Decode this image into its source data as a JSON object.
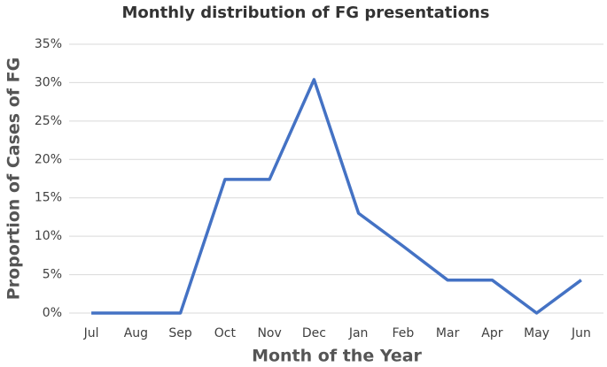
{
  "chart_data": {
    "type": "line",
    "title": "Monthly distribution of FG presentations",
    "x_label": "Month of the Year",
    "y_label": "Proportion of Cases of FG",
    "categories": [
      "Jul",
      "Aug",
      "Sep",
      "Oct",
      "Nov",
      "Dec",
      "Jan",
      "Feb",
      "Mar",
      "Apr",
      "May",
      "Jun"
    ],
    "values": [
      0,
      0,
      0,
      17.4,
      17.4,
      30.4,
      13,
      8.7,
      4.3,
      4.3,
      0,
      4.3
    ],
    "color": "#4472c4",
    "ylim": [
      0,
      35
    ],
    "yticks": [
      {
        "value": 0,
        "label": "0%"
      },
      {
        "value": 5,
        "label": "5%"
      },
      {
        "value": 10,
        "label": "10%"
      },
      {
        "value": 15,
        "label": "15%"
      },
      {
        "value": 20,
        "label": "20%"
      },
      {
        "value": 25,
        "label": "25%"
      },
      {
        "value": 30,
        "label": "30%"
      },
      {
        "value": 35,
        "label": "35%"
      }
    ],
    "grid": true
  }
}
